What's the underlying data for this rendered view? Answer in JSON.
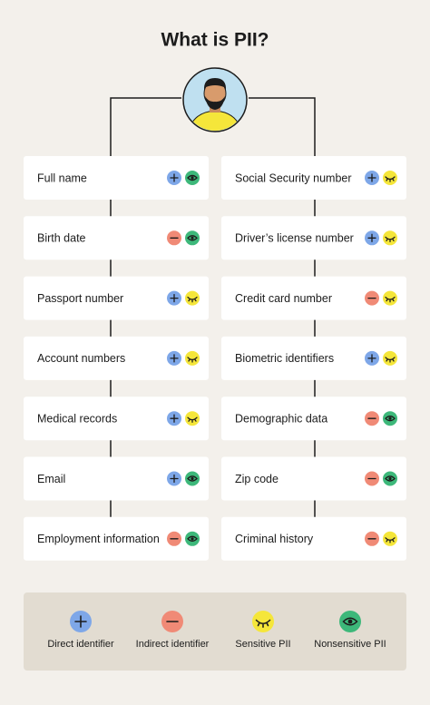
{
  "title": "What is PII?",
  "left": [
    {
      "label": "Full name",
      "icons": [
        0,
        3
      ]
    },
    {
      "label": "Birth date",
      "icons": [
        1,
        3
      ]
    },
    {
      "label": "Passport number",
      "icons": [
        0,
        2
      ]
    },
    {
      "label": "Account numbers",
      "icons": [
        0,
        2
      ]
    },
    {
      "label": "Medical records",
      "icons": [
        0,
        2
      ]
    },
    {
      "label": "Email",
      "icons": [
        0,
        3
      ]
    },
    {
      "label": "Employment information",
      "icons": [
        1,
        3
      ]
    }
  ],
  "right": [
    {
      "label": "Social Security number",
      "icons": [
        0,
        2
      ]
    },
    {
      "label": "Driver’s license number",
      "icons": [
        0,
        2
      ]
    },
    {
      "label": "Credit card number",
      "icons": [
        1,
        2
      ]
    },
    {
      "label": "Biometric identifiers",
      "icons": [
        0,
        2
      ]
    },
    {
      "label": "Demographic data",
      "icons": [
        1,
        3
      ]
    },
    {
      "label": "Zip code",
      "icons": [
        1,
        3
      ]
    },
    {
      "label": "Criminal history",
      "icons": [
        1,
        2
      ]
    }
  ],
  "legend": [
    {
      "label": "Direct identifier",
      "color": "#7ea7e8"
    },
    {
      "label": "Indirect identifier",
      "color": "#f08a76"
    },
    {
      "label": "Sensitive PII",
      "color": "#f5e63a"
    },
    {
      "label": "Nonsensitive PII",
      "color": "#3db87a"
    }
  ]
}
